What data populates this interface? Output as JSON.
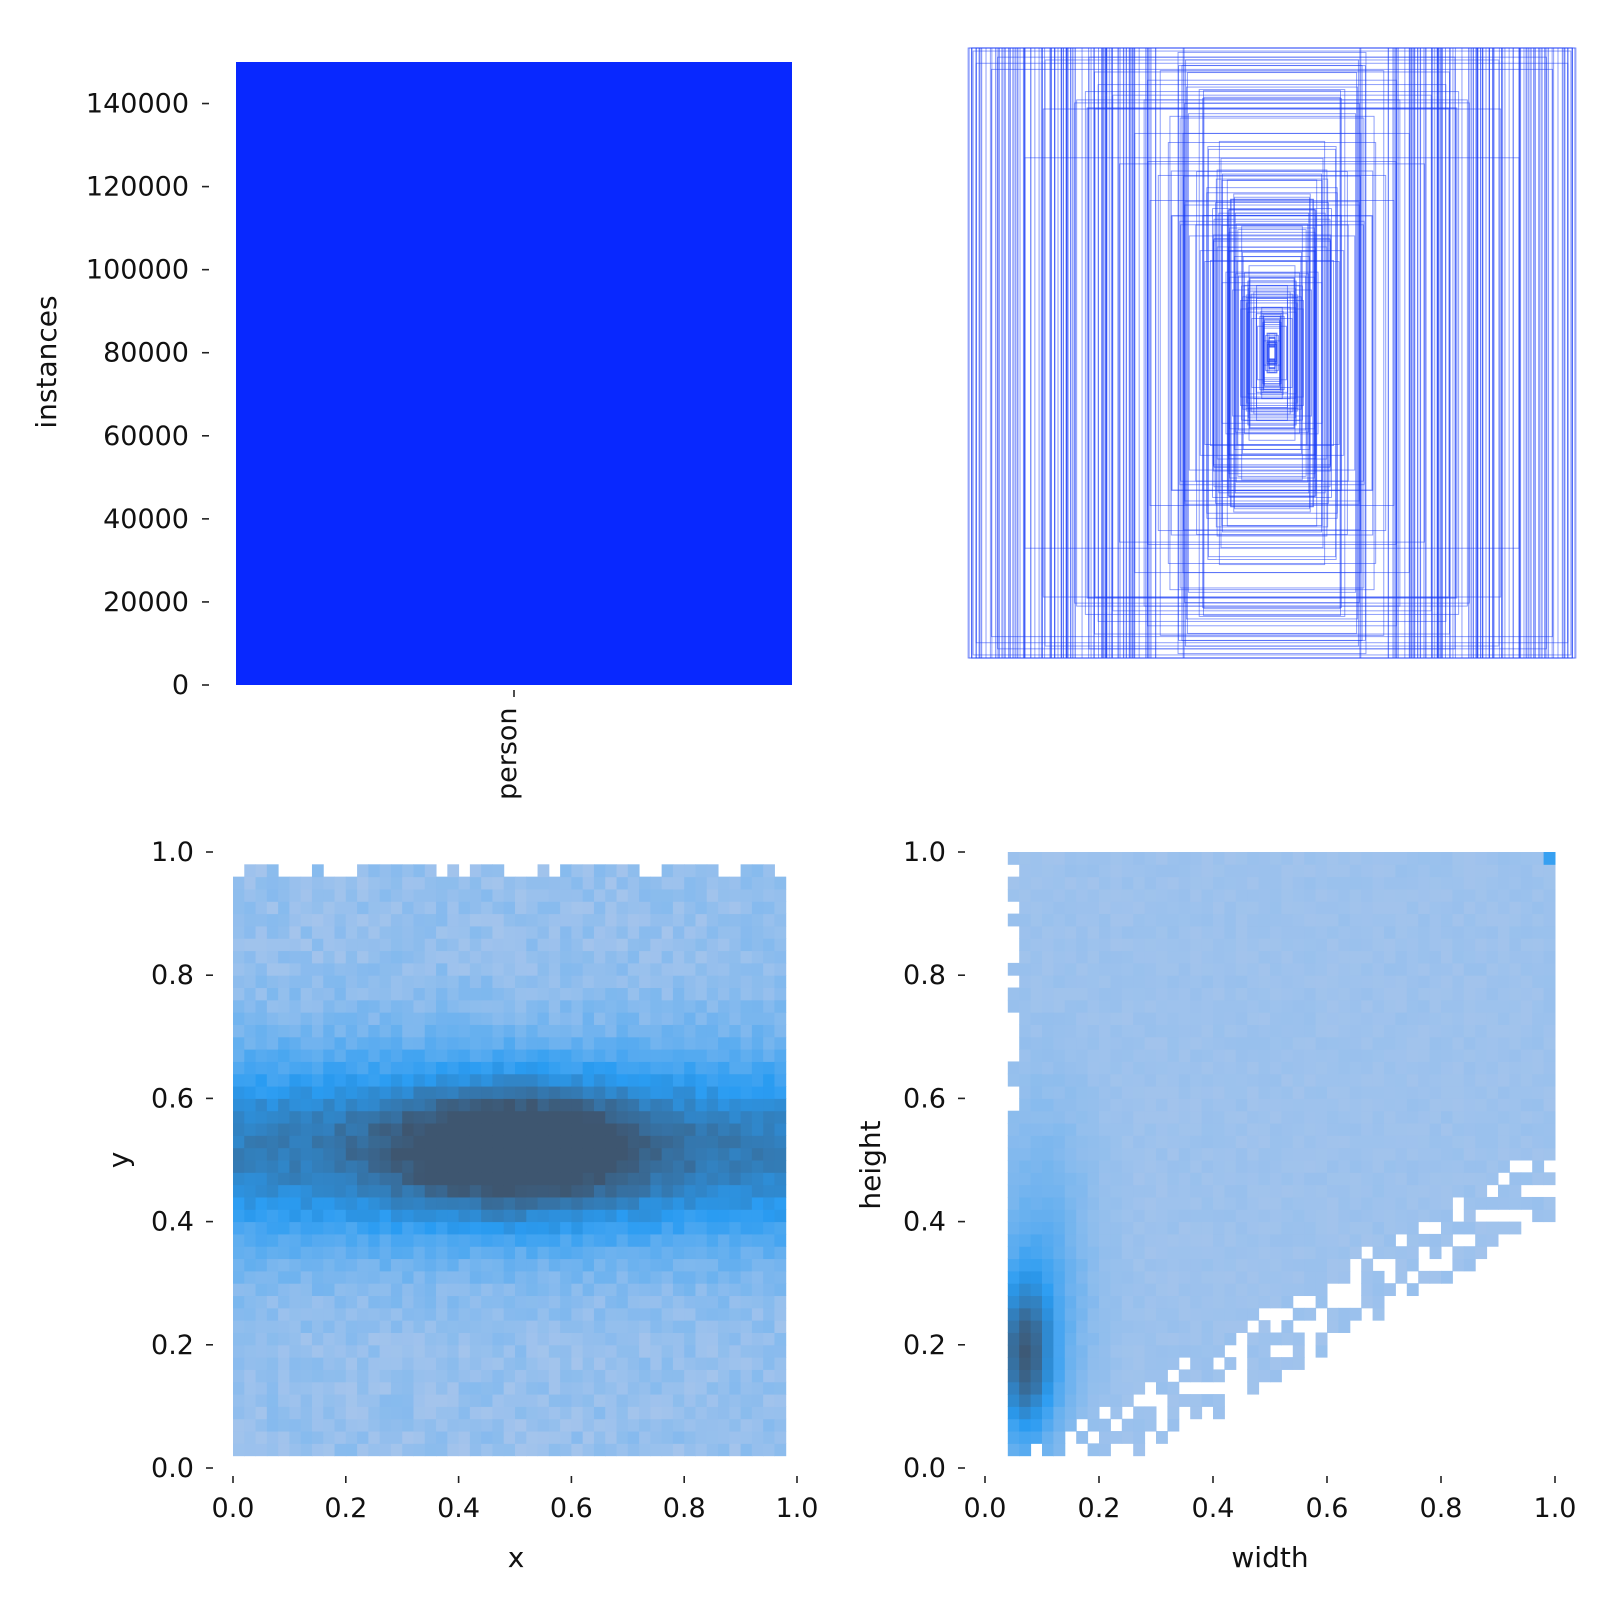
{
  "colors": {
    "bar": "#0828ff",
    "box_stroke": "#1a3cf5",
    "heat_low": "#aac6ec",
    "heat_mid": "#2a9cf2",
    "heat_high": "#3e5670"
  },
  "chart_data": [
    {
      "type": "bar",
      "categories": [
        "person"
      ],
      "values": [
        150000
      ],
      "xlabel": "",
      "ylabel": "instances",
      "ylim": [
        0,
        150000
      ],
      "yticks": [
        "0",
        "20000",
        "40000",
        "60000",
        "80000",
        "100000",
        "120000",
        "140000"
      ],
      "grid": false
    },
    {
      "type": "box-overlay",
      "xlabel": "",
      "ylabel": "",
      "description": "hundreds of outline rectangles centered at one point",
      "box_samples": [
        [
          0.98,
          0.99
        ],
        [
          0.97,
          0.95
        ],
        [
          0.92,
          0.93
        ],
        [
          0.9,
          0.97
        ],
        [
          0.6,
          0.97
        ],
        [
          0.57,
          0.88
        ],
        [
          0.75,
          0.8
        ],
        [
          0.81,
          0.64
        ],
        [
          0.58,
          0.8
        ],
        [
          0.5,
          0.62
        ],
        [
          0.45,
          0.72
        ],
        [
          0.34,
          0.69
        ],
        [
          0.4,
          0.5
        ],
        [
          0.33,
          0.45
        ],
        [
          0.29,
          0.58
        ],
        [
          0.25,
          0.42
        ],
        [
          0.22,
          0.3
        ],
        [
          0.18,
          0.6
        ],
        [
          0.14,
          0.47
        ],
        [
          0.12,
          0.26
        ],
        [
          0.1,
          0.22
        ],
        [
          0.08,
          0.18
        ],
        [
          0.06,
          0.15
        ],
        [
          0.04,
          0.12
        ],
        [
          0.03,
          0.1
        ]
      ]
    },
    {
      "type": "heatmap",
      "xlabel": "x",
      "ylabel": "y",
      "xlim": [
        0.0,
        1.0
      ],
      "ylim": [
        0.0,
        1.0
      ],
      "xticks": [
        "0.0",
        "0.2",
        "0.4",
        "0.6",
        "0.8",
        "1.0"
      ],
      "yticks": [
        "0.0",
        "0.2",
        "0.4",
        "0.6",
        "0.8",
        "1.0"
      ],
      "bins": 50,
      "density_peak": [
        0.5,
        0.52
      ]
    },
    {
      "type": "heatmap",
      "xlabel": "width",
      "ylabel": "height",
      "xlim": [
        0.0,
        1.0
      ],
      "ylim": [
        0.0,
        1.0
      ],
      "xticks": [
        "0.0",
        "0.2",
        "0.4",
        "0.6",
        "0.8",
        "1.0"
      ],
      "yticks": [
        "0.0",
        "0.2",
        "0.4",
        "0.6",
        "0.8",
        "1.0"
      ],
      "bins": 50,
      "density_peak": [
        0.07,
        0.18
      ]
    }
  ]
}
